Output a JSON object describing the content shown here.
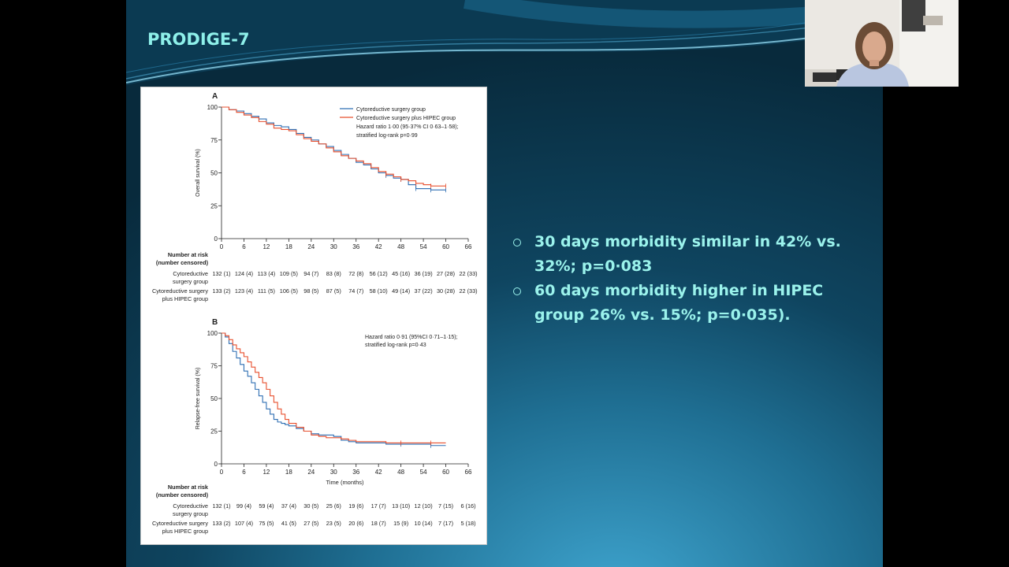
{
  "slide": {
    "title": "PRODIGE-7",
    "bullets": [
      "30 days morbidity  similar in 42% vs. 32%; p=0·083",
      "60 days  morbidity higher in HIPEC group 26% vs. 15%; p=0·035)."
    ]
  },
  "colors": {
    "title": "#8ef0ea",
    "bullet_text": "#9bf3ec",
    "cytoreductive_line": "#2f6fb3",
    "hipec_line": "#e8502f"
  },
  "webcam": {
    "icon": "presenter-video-thumbnail"
  },
  "chart_data": [
    {
      "type": "line",
      "panel_label": "A",
      "ylabel": "Overall survival (%)",
      "xlabel": "",
      "xlim": [
        0,
        66
      ],
      "ylim": [
        0,
        100
      ],
      "x_ticks": [
        0,
        6,
        12,
        18,
        24,
        30,
        36,
        42,
        48,
        54,
        60,
        66
      ],
      "y_ticks": [
        0,
        25,
        50,
        75,
        100
      ],
      "legend": [
        "Cytoreductive surgery group",
        "Cytoreductive surgery plus HIPEC group"
      ],
      "legend_position": "top-right",
      "annotation": [
        "Hazard ratio 1·00 (95·37% CI 0·63–1·58);",
        "stratified log-rank p=0·99"
      ],
      "series": [
        {
          "name": "Cytoreductive surgery group",
          "color": "#2f6fb3",
          "x": [
            0,
            2,
            4,
            6,
            8,
            10,
            12,
            14,
            16,
            18,
            20,
            22,
            24,
            26,
            28,
            30,
            32,
            34,
            36,
            38,
            40,
            42,
            44,
            46,
            48,
            50,
            52,
            54,
            56,
            58,
            60
          ],
          "y": [
            100,
            98,
            97,
            95,
            93,
            91,
            88,
            86,
            85,
            83,
            80,
            77,
            75,
            72,
            70,
            67,
            64,
            61,
            58,
            56,
            53,
            50,
            48,
            46,
            45,
            41,
            38,
            38,
            37,
            37,
            37
          ]
        },
        {
          "name": "Cytoreductive surgery plus HIPEC group",
          "color": "#e8502f",
          "x": [
            0,
            2,
            4,
            6,
            8,
            10,
            12,
            14,
            16,
            18,
            20,
            22,
            24,
            26,
            28,
            30,
            32,
            34,
            36,
            38,
            40,
            42,
            44,
            46,
            48,
            50,
            52,
            54,
            56,
            58,
            60
          ],
          "y": [
            100,
            98,
            96,
            94,
            92,
            89,
            87,
            84,
            83,
            82,
            79,
            76,
            74,
            72,
            69,
            66,
            63,
            61,
            59,
            57,
            54,
            51,
            49,
            47,
            45,
            44,
            42,
            41,
            40,
            40,
            40
          ]
        }
      ],
      "risk_table": {
        "header": [
          "Number at risk",
          "(number censored)"
        ],
        "rows": [
          {
            "label": [
              "Cytoreductive",
              "surgery group"
            ],
            "values": [
              "132 (1)",
              "124 (4)",
              "113 (4)",
              "109 (5)",
              "94 (7)",
              "83 (8)",
              "72 (8)",
              "56 (12)",
              "45 (16)",
              "36 (19)",
              "27 (28)",
              "22 (33)"
            ]
          },
          {
            "label": [
              "Cytoreductive surgery",
              "plus HIPEC group"
            ],
            "values": [
              "133 (2)",
              "123 (4)",
              "111 (5)",
              "106 (5)",
              "98 (5)",
              "87 (5)",
              "74 (7)",
              "58 (10)",
              "49 (14)",
              "37 (22)",
              "30 (28)",
              "22 (33)"
            ]
          }
        ]
      }
    },
    {
      "type": "line",
      "panel_label": "B",
      "ylabel": "Relapse-free survival (%)",
      "xlabel": "Time (months)",
      "xlim": [
        0,
        66
      ],
      "ylim": [
        0,
        100
      ],
      "x_ticks": [
        0,
        6,
        12,
        18,
        24,
        30,
        36,
        42,
        48,
        54,
        60,
        66
      ],
      "y_ticks": [
        0,
        25,
        50,
        75,
        100
      ],
      "legend_position": "none",
      "annotation": [
        "Hazard ratio 0·91 (95%CI 0·71–1·15);",
        "stratified log-rank p=0·43"
      ],
      "series": [
        {
          "color": "#2f6fb3",
          "x": [
            0,
            1,
            2,
            3,
            4,
            5,
            6,
            7,
            8,
            9,
            10,
            11,
            12,
            13,
            14,
            15,
            16,
            17,
            18,
            20,
            22,
            24,
            26,
            28,
            30,
            32,
            34,
            36,
            40,
            44,
            48,
            52,
            56,
            60
          ],
          "y": [
            100,
            97,
            92,
            86,
            81,
            76,
            71,
            67,
            62,
            57,
            52,
            47,
            42,
            38,
            34,
            32,
            31,
            30,
            29,
            27,
            25,
            23,
            22,
            22,
            21,
            18,
            17,
            16,
            16,
            15,
            15,
            15,
            14,
            14
          ]
        },
        {
          "color": "#e8502f",
          "x": [
            0,
            1,
            2,
            3,
            4,
            5,
            6,
            7,
            8,
            9,
            10,
            11,
            12,
            13,
            14,
            15,
            16,
            17,
            18,
            20,
            22,
            24,
            26,
            28,
            30,
            32,
            34,
            36,
            40,
            44,
            48,
            52,
            56,
            60
          ],
          "y": [
            100,
            98,
            95,
            91,
            88,
            85,
            82,
            78,
            74,
            70,
            66,
            62,
            57,
            52,
            47,
            42,
            38,
            34,
            31,
            28,
            25,
            22,
            21,
            20,
            20,
            19,
            18,
            17,
            17,
            16,
            16,
            16,
            16,
            16
          ]
        }
      ],
      "risk_table": {
        "header": [
          "Number at risk",
          "(number censored)"
        ],
        "rows": [
          {
            "label": [
              "Cytoreductive",
              "surgery group"
            ],
            "values": [
              "132 (1)",
              "99 (4)",
              "59 (4)",
              "37 (4)",
              "30 (5)",
              "25 (6)",
              "19 (6)",
              "17 (7)",
              "13 (10)",
              "12 (10)",
              "7 (15)",
              "6 (16)"
            ]
          },
          {
            "label": [
              "Cytoreductive surgery",
              "plus HIPEC group"
            ],
            "values": [
              "133 (2)",
              "107 (4)",
              "75 (5)",
              "41 (5)",
              "27 (5)",
              "23 (5)",
              "20 (6)",
              "18 (7)",
              "15 (9)",
              "10 (14)",
              "7 (17)",
              "5 (18)"
            ]
          }
        ]
      }
    }
  ]
}
